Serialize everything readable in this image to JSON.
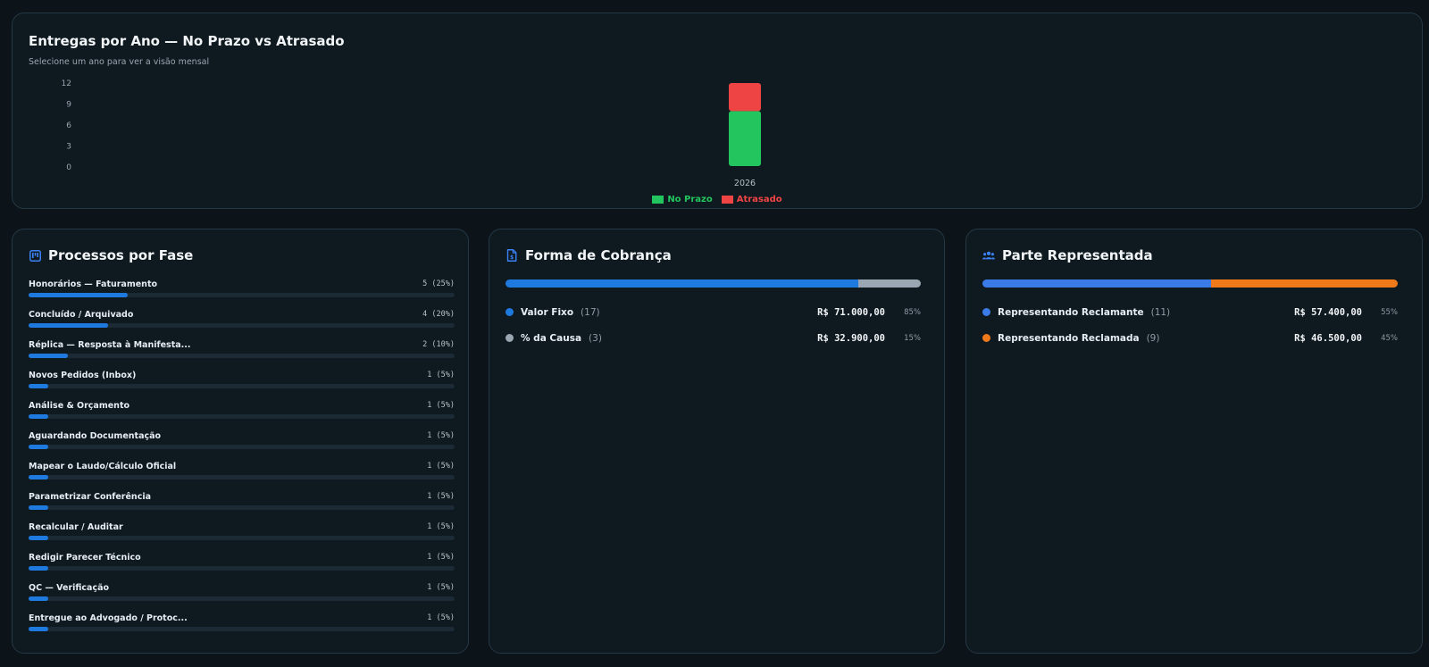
{
  "deliveries": {
    "title": "Entregas por Ano — No Prazo vs Atrasado",
    "subtitle": "Selecione um ano para ver a visão mensal",
    "legend": [
      {
        "label": "No Prazo",
        "color": "#22c55e"
      },
      {
        "label": "Atrasado",
        "color": "#ef4444"
      }
    ]
  },
  "chart_data": {
    "type": "bar",
    "stacked": true,
    "categories": [
      "2026"
    ],
    "series": [
      {
        "name": "No Prazo",
        "values": [
          8
        ],
        "color": "#22c55e"
      },
      {
        "name": "Atrasado",
        "values": [
          4
        ],
        "color": "#ef4444"
      }
    ],
    "y_ticks": [
      0,
      3,
      6,
      9,
      12
    ],
    "ylim": [
      0,
      12
    ],
    "xlabel": "",
    "ylabel": ""
  },
  "phases": {
    "title": "Processos por Fase",
    "icon": "kanban-board-icon",
    "bar_color": "#1f7ae0",
    "items": [
      {
        "label": "Honorários — Faturamento",
        "count": "5 (25%)",
        "fraction": 0.25
      },
      {
        "label": "Concluído / Arquivado",
        "count": "4 (20%)",
        "fraction": 0.2
      },
      {
        "label": "Réplica — Resposta à Manifesta...",
        "count": "2 (10%)",
        "fraction": 0.1
      },
      {
        "label": "Novos Pedidos (Inbox)",
        "count": "1 (5%)",
        "fraction": 0.05
      },
      {
        "label": "Análise & Orçamento",
        "count": "1 (5%)",
        "fraction": 0.05
      },
      {
        "label": "Aguardando Documentação",
        "count": "1 (5%)",
        "fraction": 0.05
      },
      {
        "label": "Mapear o Laudo/Cálculo Oficial",
        "count": "1 (5%)",
        "fraction": 0.05
      },
      {
        "label": "Parametrizar Conferência",
        "count": "1 (5%)",
        "fraction": 0.05
      },
      {
        "label": "Recalcular / Auditar",
        "count": "1 (5%)",
        "fraction": 0.05
      },
      {
        "label": "Redigir Parecer Técnico",
        "count": "1 (5%)",
        "fraction": 0.05
      },
      {
        "label": "QC — Verificação",
        "count": "1 (5%)",
        "fraction": 0.05
      },
      {
        "label": "Entregue ao Advogado / Protoc...",
        "count": "1 (5%)",
        "fraction": 0.05
      }
    ]
  },
  "billing": {
    "title": "Forma de Cobrança",
    "icon": "document-icon",
    "rows": [
      {
        "label": "Valor Fixo",
        "count": "(17)",
        "amount": "R$ 71.000,00",
        "pct": "85%",
        "share": 0.85,
        "color": "#1f7ae0"
      },
      {
        "label": "% da Causa",
        "count": "(3)",
        "amount": "R$ 32.900,00",
        "pct": "15%",
        "share": 0.15,
        "color": "#9aa7b2"
      }
    ]
  },
  "party": {
    "title": "Parte Representada",
    "icon": "users-icon",
    "rows": [
      {
        "label": "Representando Reclamante",
        "count": "(11)",
        "amount": "R$ 57.400,00",
        "pct": "55%",
        "share": 0.55,
        "color": "#3b7be8"
      },
      {
        "label": "Representando Reclamada",
        "count": "(9)",
        "amount": "R$ 46.500,00",
        "pct": "45%",
        "share": 0.45,
        "color": "#f07a1a"
      }
    ]
  }
}
